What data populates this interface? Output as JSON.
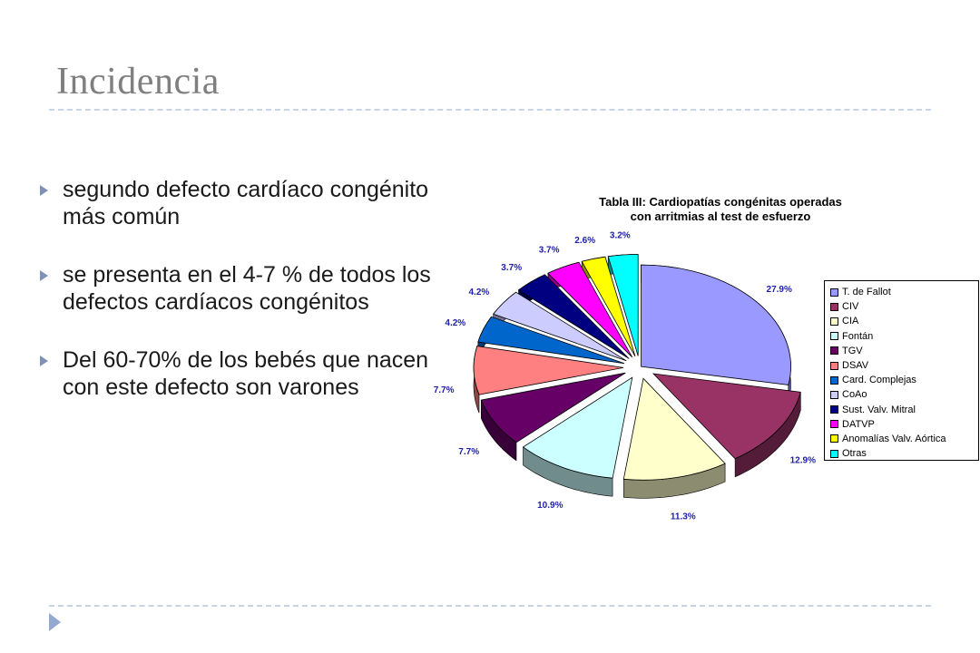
{
  "slide": {
    "title": "Incidencia",
    "bullets": [
      "segundo defecto cardíaco congénito más común",
      "se presenta en el 4-7 % de todos los defectos cardíacos congénitos",
      " Del 60-70% de los bebés que nacen con este defecto son varones"
    ]
  },
  "chart_data": {
    "type": "pie",
    "title_lines": [
      "Tabla III: Cardiopatías congénitas operadas",
      "con arritmias al test de esfuerzo"
    ],
    "categories": [
      "T. de Fallot",
      "CIV",
      "CIA",
      "Fontán",
      "TGV",
      "DSAV",
      "Card. Complejas",
      "CoAo",
      "Sust. Valv. Mitral",
      "DATVP",
      "Anomalías Valv. Aórtica",
      "Otras"
    ],
    "values": [
      27.9,
      12.9,
      11.3,
      10.9,
      7.7,
      7.7,
      4.2,
      4.2,
      3.7,
      3.7,
      2.6,
      3.2
    ],
    "value_labels": [
      "27.9%",
      "12.9%",
      "11.3%",
      "10.9%",
      "7.7%",
      "7.7%",
      "4.2%",
      "4.2%",
      "3.7%",
      "3.7%",
      "2.6%",
      "3.2%"
    ],
    "colors": [
      "#9999ff",
      "#993366",
      "#ffffcc",
      "#ccffff",
      "#660066",
      "#ff8080",
      "#0066cc",
      "#ccccff",
      "#000080",
      "#ff00ff",
      "#ffff00",
      "#00ffff"
    ],
    "style": "3d-exploded",
    "legend_position": "right"
  }
}
